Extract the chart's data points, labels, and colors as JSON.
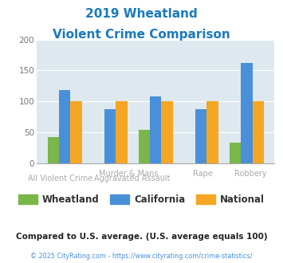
{
  "title_line1": "2019 Wheatland",
  "title_line2": "Violent Crime Comparison",
  "title_color": "#1a7abf",
  "wheatland": [
    42,
    0,
    53,
    0,
    33
  ],
  "california": [
    118,
    87,
    108,
    87,
    162
  ],
  "national": [
    100,
    100,
    100,
    100,
    100
  ],
  "bar_color_wheatland": "#7ab648",
  "bar_color_california": "#4a90d9",
  "bar_color_national": "#f5a623",
  "background_color": "#dde8ef",
  "ylim": [
    0,
    200
  ],
  "yticks": [
    0,
    50,
    100,
    150,
    200
  ],
  "footer_text": "Compared to U.S. average. (U.S. average equals 100)",
  "footer_color": "#222222",
  "copyright_text": "© 2025 CityRating.com - https://www.cityrating.com/crime-statistics/",
  "copyright_color": "#4a90d9",
  "legend_labels": [
    "Wheatland",
    "California",
    "National"
  ],
  "top_labels": [
    "",
    "Murder & Mans...",
    "",
    ""
  ],
  "bottom_labels": [
    "All Violent Crime",
    "Aggravated Assault",
    "Rape",
    "Robbery"
  ]
}
